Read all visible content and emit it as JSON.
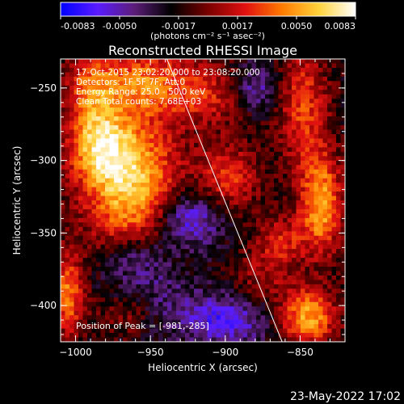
{
  "colorbar": {
    "ticks": [
      "-0.0083",
      "-0.0050",
      "-0.0017",
      "0.0017",
      "0.0050",
      "0.0083"
    ],
    "min": -0.0083,
    "max": 0.0083,
    "unit_line": "(photons cm⁻² s⁻¹ asec⁻²)",
    "colors": [
      "#0000ff",
      "#5a1cff",
      "#5c1d78",
      "#000000",
      "#7a0000",
      "#e01010",
      "#ff7a00",
      "#ffd23a",
      "#ffffff"
    ]
  },
  "chart_data": {
    "type": "heatmap",
    "title": "Reconstructed RHESSI Image",
    "xlabel": "Heliocentric X (arcsec)",
    "ylabel": "Heliocentric Y (arcsec)",
    "xlim": [
      -1010,
      -820
    ],
    "ylim": [
      -425,
      -230
    ],
    "xticks": [
      -1000,
      -950,
      -900,
      -850
    ],
    "yticks": [
      -250,
      -300,
      -350,
      -400
    ],
    "info_lines": [
      "17-Oct-2015 23:02:20.000 to 23:08:20.000",
      "Detectors: 1F 5F 7F, Att:0",
      "Energy Range: 25.0 - 50.0 keV",
      "Clean    Total counts: 7.68E+03"
    ],
    "peak_label": "Position of Peak = [-981,-285]",
    "limb": {
      "x": [
        -939,
        -862
      ],
      "y": [
        -230,
        -425
      ]
    },
    "hotspots": [
      {
        "x": -963,
        "y": -315,
        "amp": 0.0083,
        "sx": 22,
        "sy": 32
      },
      {
        "x": -985,
        "y": -288,
        "amp": 0.006,
        "sx": 14,
        "sy": 18
      },
      {
        "x": -955,
        "y": -245,
        "amp": 0.005,
        "sx": 22,
        "sy": 16
      },
      {
        "x": -990,
        "y": -250,
        "amp": 0.0042,
        "sx": 12,
        "sy": 18
      },
      {
        "x": -910,
        "y": -255,
        "amp": 0.0035,
        "sx": 22,
        "sy": 16
      },
      {
        "x": -898,
        "y": -312,
        "amp": 0.0045,
        "sx": 14,
        "sy": 16
      },
      {
        "x": -848,
        "y": -262,
        "amp": 0.0045,
        "sx": 12,
        "sy": 30
      },
      {
        "x": -836,
        "y": -330,
        "amp": 0.007,
        "sx": 10,
        "sy": 24
      },
      {
        "x": -845,
        "y": -408,
        "amp": 0.007,
        "sx": 13,
        "sy": 14
      },
      {
        "x": -862,
        "y": -355,
        "amp": 0.0035,
        "sx": 12,
        "sy": 12
      },
      {
        "x": -1005,
        "y": -392,
        "amp": 0.006,
        "sx": 8,
        "sy": 20
      },
      {
        "x": -965,
        "y": -405,
        "amp": 0.004,
        "sx": 16,
        "sy": 12
      },
      {
        "x": -875,
        "y": -380,
        "amp": 0.0025,
        "sx": 14,
        "sy": 14
      },
      {
        "x": -925,
        "y": -340,
        "amp": -0.005,
        "sx": 16,
        "sy": 14
      },
      {
        "x": -955,
        "y": -395,
        "amp": -0.0035,
        "sx": 22,
        "sy": 18
      },
      {
        "x": -880,
        "y": -250,
        "amp": -0.004,
        "sx": 12,
        "sy": 12
      },
      {
        "x": -900,
        "y": -410,
        "amp": -0.0045,
        "sx": 20,
        "sy": 12
      },
      {
        "x": -960,
        "y": -365,
        "amp": -0.003,
        "sx": 14,
        "sy": 10
      }
    ]
  },
  "footer": {
    "timestamp": "23-May-2022 17:02"
  }
}
